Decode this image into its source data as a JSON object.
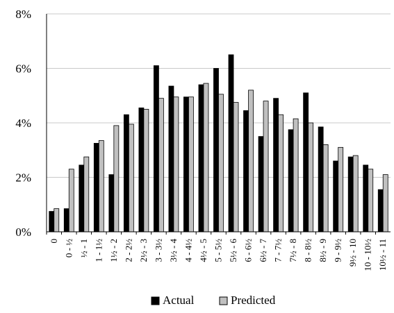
{
  "chart_data": {
    "type": "bar",
    "title": "",
    "xlabel": "",
    "ylabel": "",
    "ylim": [
      0,
      8
    ],
    "y_ticks": [
      0,
      2,
      4,
      6,
      8
    ],
    "y_tick_labels": [
      "0%",
      "2%",
      "4%",
      "6%",
      "8%"
    ],
    "grid": true,
    "legend_position": "bottom",
    "categories": [
      "0",
      "0 - ½",
      "½ - 1",
      "1 - 1½",
      "1½ - 2",
      "2 - 2½",
      "2½ - 3",
      "3 - 3½",
      "3½ - 4",
      "4 - 4½",
      "4½ - 5",
      "5 - 5½",
      "5½ - 6",
      "6 - 6½",
      "6½ - 7",
      "7 - 7½",
      "7½ - 8",
      "8 - 8½",
      "8½ - 9",
      "9 - 9½",
      "9½ - 10",
      "10 - 10½",
      "10½ - 11"
    ],
    "series": [
      {
        "name": "Actual",
        "color": "#000000",
        "values": [
          0.75,
          0.85,
          2.45,
          3.25,
          2.1,
          4.3,
          4.55,
          6.1,
          5.35,
          4.95,
          5.4,
          6.0,
          6.5,
          4.45,
          3.5,
          4.9,
          3.75,
          5.1,
          3.85,
          2.6,
          2.75,
          2.45,
          1.55
        ]
      },
      {
        "name": "Predicted",
        "color": "#c0c0c0",
        "values": [
          0.85,
          2.3,
          2.75,
          3.35,
          3.9,
          3.95,
          4.5,
          4.9,
          4.95,
          4.95,
          5.45,
          5.05,
          4.75,
          5.2,
          4.8,
          4.3,
          4.15,
          4.0,
          3.2,
          3.1,
          2.8,
          2.3,
          2.1
        ]
      }
    ]
  }
}
